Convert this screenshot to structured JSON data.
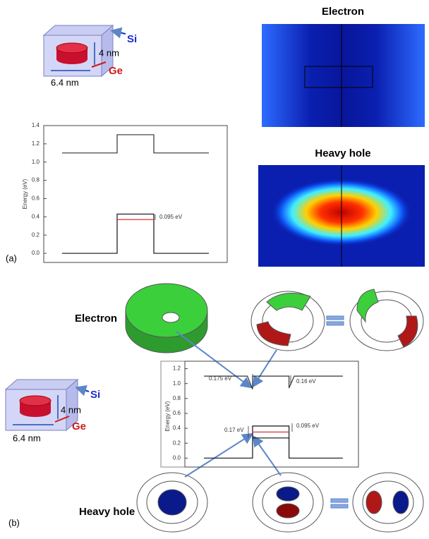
{
  "panel_a": {
    "label": "(a)",
    "schematic": {
      "barrier": "Si",
      "height": "4 nm",
      "dot": "Ge",
      "width": "6.4 nm"
    },
    "maps": [
      {
        "title": "Electron"
      },
      {
        "title": "Heavy hole"
      }
    ]
  },
  "panel_b": {
    "label": "(b)",
    "schematic": {
      "barrier": "Si",
      "height": "4 nm",
      "dot": "Ge",
      "width": "6.4 nm"
    },
    "electron_label": "Electron",
    "hole_label": "Heavy hole"
  },
  "chart_data": [
    {
      "type": "line",
      "y_label": "Energy (eV)",
      "xlim": [
        0,
        10
      ],
      "ylim": [
        -0.1,
        1.4
      ],
      "yticks": [
        {
          "value": 0,
          "label": "0.0"
        },
        0.2,
        0.4,
        0.6,
        0.8,
        {
          "value": 1,
          "label": "1.0"
        },
        1.2,
        1.4
      ],
      "series": [
        {
          "color": "#333333",
          "x": [
            1,
            4,
            4,
            6,
            6,
            9
          ],
          "values": [
            1.1,
            1.1,
            1.3,
            1.3,
            1.1,
            1.1
          ]
        },
        {
          "color": "#111111",
          "x": [
            1,
            4,
            4,
            6,
            6,
            9
          ],
          "values": [
            0,
            0,
            0.43,
            0.43,
            0,
            0
          ]
        },
        {
          "color": "#e03030",
          "x": [
            4,
            6
          ],
          "values": [
            0.37,
            0.37
          ]
        }
      ],
      "annotations": [
        "0.095 eV"
      ]
    },
    {
      "type": "line",
      "y_label": "Energy (eV)",
      "xlim": [
        0,
        10
      ],
      "ylim": [
        -0.12,
        1.3
      ],
      "yticks": [
        {
          "value": 0,
          "label": "0.0"
        },
        0.2,
        0.4,
        0.6,
        0.8,
        {
          "value": 1,
          "label": "1.0"
        },
        1.2
      ],
      "series": [
        {
          "color": "#333333",
          "x": [
            1.1,
            3.6,
            3.9,
            3.9,
            6.0,
            6.0,
            6.3,
            9.1
          ],
          "values": [
            1.1,
            1.1,
            0.925,
            1.1,
            1.1,
            0.94,
            1.1,
            1.1
          ]
        },
        {
          "color": "#111111",
          "x": [
            1.1,
            3.9,
            3.9,
            6.0,
            6.0,
            9.1
          ],
          "values": [
            0,
            0,
            0.43,
            0.43,
            0,
            0
          ]
        },
        {
          "color": "#111111",
          "x": [
            3.9,
            6.0
          ],
          "values": [
            0.27,
            0.27
          ]
        },
        {
          "color": "#e03030",
          "x": [
            3.9,
            6.0
          ],
          "values": [
            0.35,
            0.35
          ]
        }
      ],
      "annotations": [
        "0.175 eV",
        "0.16 eV",
        "0.17 eV",
        "0.095 eV"
      ]
    }
  ]
}
